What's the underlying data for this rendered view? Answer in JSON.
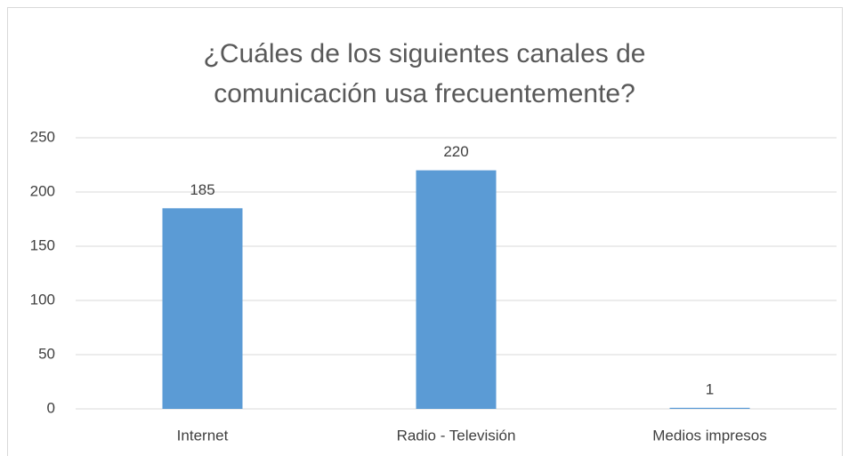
{
  "chart_data": {
    "type": "bar",
    "title": "¿Cuáles de los siguientes canales de comunicación usa frecuentemente?",
    "categories": [
      "Internet",
      "Radio - Televisión",
      "Medios impresos"
    ],
    "values": [
      185,
      220,
      1
    ],
    "color": "#5b9bd5",
    "ylim": [
      0,
      250
    ],
    "yticks": [
      0,
      50,
      100,
      150,
      200,
      250
    ],
    "grid": true
  }
}
